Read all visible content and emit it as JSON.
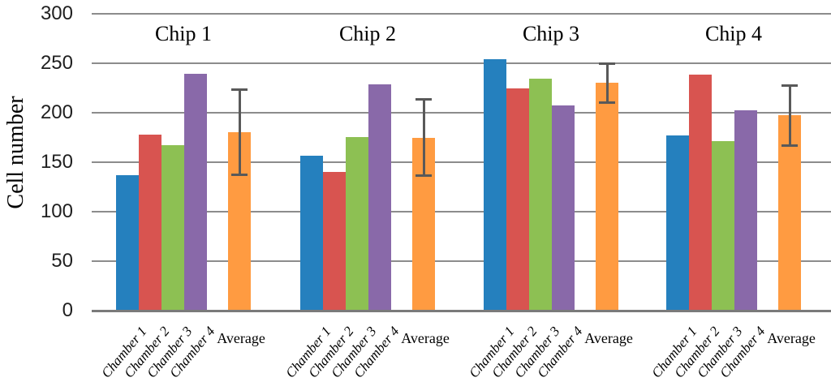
{
  "chart_data": {
    "type": "bar",
    "title": "",
    "ylabel": "Cell number",
    "xlabel": "",
    "ylim": [
      0,
      300
    ],
    "yticks": [
      0,
      50,
      100,
      150,
      200,
      250,
      300
    ],
    "grid": true,
    "legend": "none",
    "categories": [
      "Chamber 1",
      "Chamber 2",
      "Chamber 3",
      "Chamber 4",
      "Average"
    ],
    "groups": [
      {
        "label": "Chip 1",
        "values": [
          137,
          178,
          167,
          239
        ],
        "average": 180.25,
        "stdev": 42.9
      },
      {
        "label": "Chip 2",
        "values": [
          156,
          140,
          175,
          228
        ],
        "average": 174.75,
        "stdev": 38.3
      },
      {
        "label": "Chip 3",
        "values": [
          254,
          224,
          234,
          207
        ],
        "average": 229.75,
        "stdev": 19.6
      },
      {
        "label": "Chip 4",
        "values": [
          177,
          238,
          171,
          202
        ],
        "average": 197.0,
        "stdev": 30.5
      }
    ],
    "colors": {
      "chambers": [
        "#2580BE",
        "#D85450",
        "#8DC053",
        "#8969A9"
      ],
      "average": "#FF9B41",
      "error": "#595959",
      "gridline": "#8C8C8C",
      "axis": "#7A7A7A",
      "text": "#000000"
    }
  }
}
